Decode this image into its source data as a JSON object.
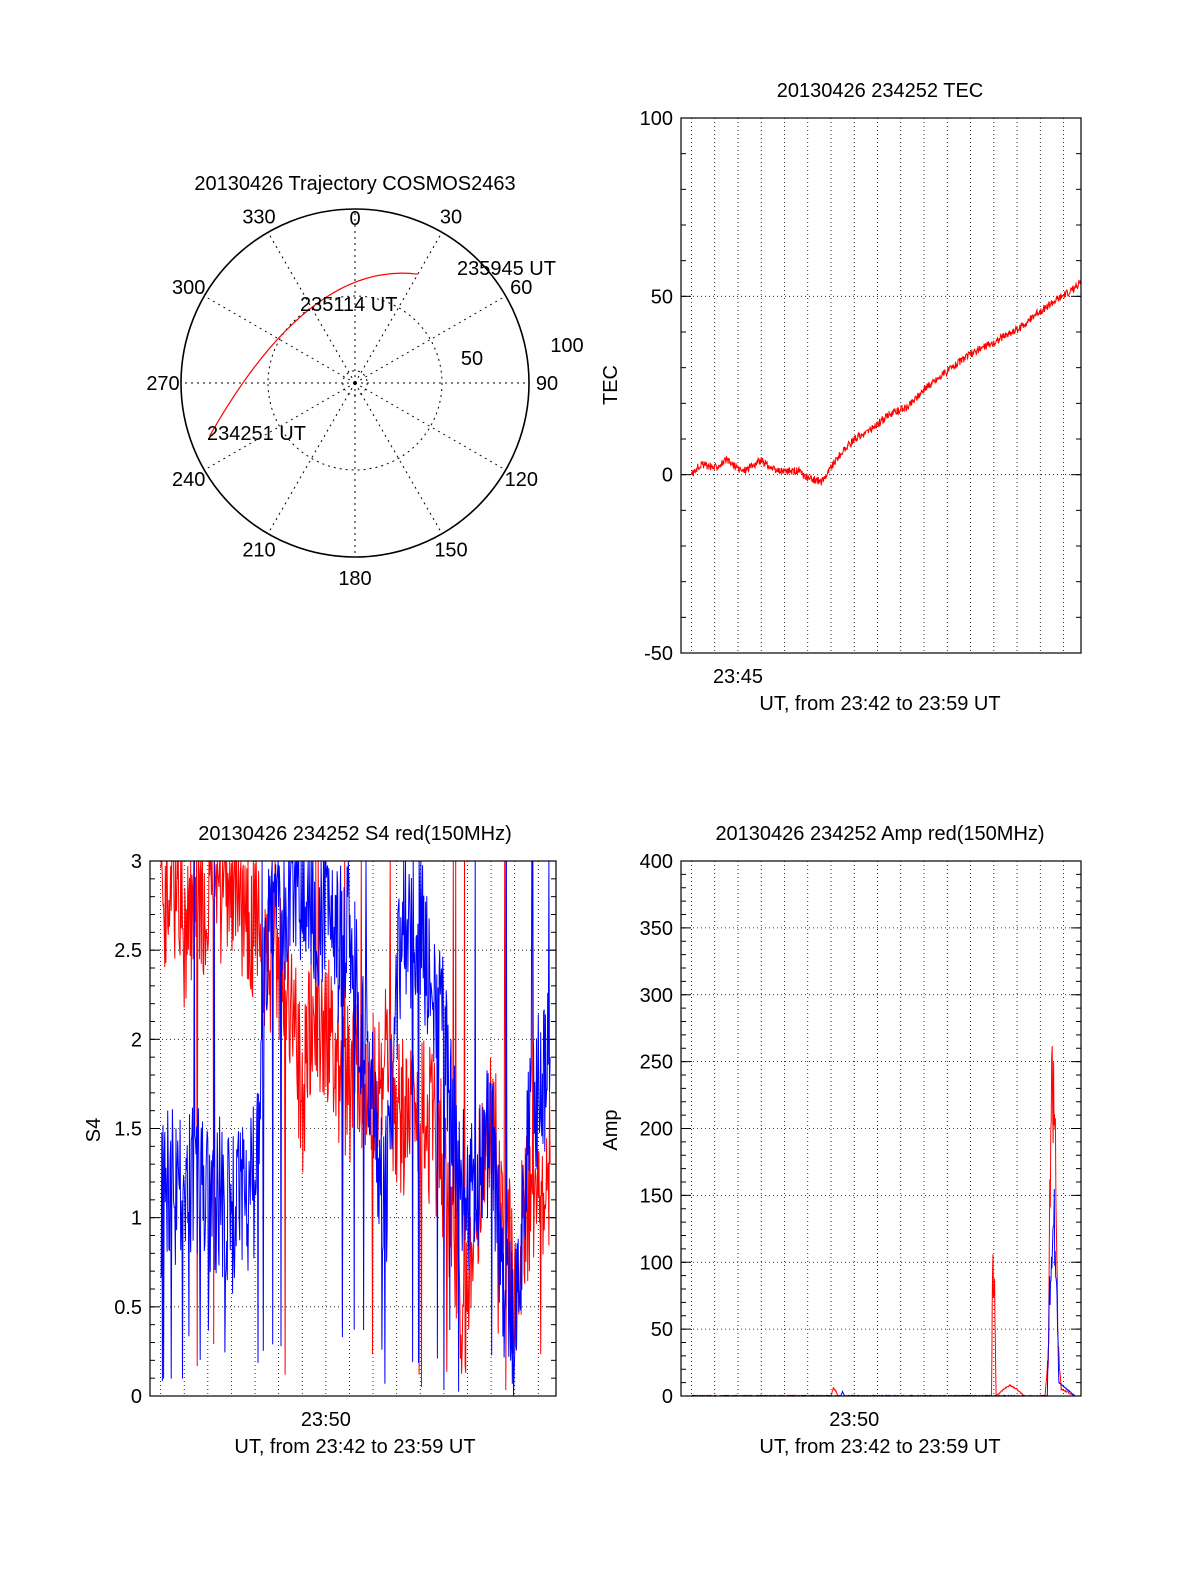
{
  "colors": {
    "red": "#ff0000",
    "blue": "#0000ff",
    "axis": "#000000",
    "grid": "#000000"
  },
  "chart_data": [
    {
      "type": "polar",
      "title": "20130426 Trajectory COSMOS2463",
      "azimuth_labels": [
        "0",
        "30",
        "60",
        "90",
        "120",
        "150",
        "180",
        "210",
        "240",
        "270",
        "300",
        "330"
      ],
      "radial_labels": [
        "50",
        "100"
      ],
      "points": [
        {
          "label": "234251 UT",
          "azimuth": 250,
          "elevation": 10
        },
        {
          "label": "235114 UT",
          "azimuth": 330,
          "elevation": 45
        },
        {
          "label": "235945 UT",
          "azimuth": 30,
          "elevation": 25
        }
      ],
      "series_color": "red"
    },
    {
      "type": "line",
      "title": "20130426 234252 TEC",
      "ylabel": "TEC",
      "xlabel": "UT, from 23:42 to 23:59 UT",
      "xtick_labels": [
        {
          "t": 45,
          "label": "23:45"
        }
      ],
      "ylim": [
        -50,
        100
      ],
      "yticks": [
        -50,
        0,
        50,
        100
      ],
      "xlim": [
        42.55,
        59.75
      ],
      "grid": true,
      "series": [
        {
          "color": "red",
          "x": [
            43.0,
            43.4,
            44.0,
            44.5,
            45.2,
            46.0,
            46.6,
            47.2,
            47.6,
            48.0,
            48.6,
            49.3,
            50.0,
            50.8,
            51.5,
            52.3,
            53.0,
            53.8,
            54.6,
            55.3,
            56.0,
            56.5,
            57.1,
            57.8,
            58.5,
            59.2,
            59.75
          ],
          "y": [
            0,
            3,
            2,
            4,
            1,
            4,
            1,
            1,
            1,
            -1,
            -2,
            5,
            10,
            13,
            17,
            19,
            24,
            28,
            32,
            35,
            37,
            39,
            41,
            45,
            48,
            51,
            54
          ]
        }
      ]
    },
    {
      "type": "line",
      "title": "20130426 234252 S4 red(150MHz)",
      "ylabel": "S4",
      "xlabel": "UT, from 23:42 to 23:59 UT",
      "xtick_labels": [
        {
          "t": 50,
          "label": "23:50"
        }
      ],
      "ylim": [
        0,
        3
      ],
      "yticks": [
        0,
        0.5,
        1,
        1.5,
        2,
        2.5,
        3
      ],
      "ytick_labels": [
        "0",
        "0.5",
        "1",
        "1.5",
        "2",
        "2.5",
        "3"
      ],
      "xlim": [
        42.55,
        59.75
      ],
      "grid": true,
      "series": [
        {
          "color": "red",
          "x": [
            43.0,
            43.5,
            44.0,
            44.5,
            45.0,
            45.5,
            46.0,
            46.5,
            47.0,
            47.5,
            48.0,
            48.5,
            49.0,
            49.5,
            50.0,
            50.5,
            51.0,
            51.5,
            52.0,
            52.5,
            53.0,
            53.5,
            54.0,
            54.5,
            55.0,
            55.5,
            56.0,
            56.5,
            57.0,
            57.5,
            58.0,
            58.5,
            59.0,
            59.5
          ],
          "y": [
            2.7,
            2.95,
            2.6,
            2.9,
            2.7,
            2.85,
            2.8,
            2.75,
            2.6,
            2.5,
            2.45,
            2.3,
            1.6,
            2.2,
            2.1,
            1.85,
            1.75,
            1.8,
            1.7,
            1.9,
            1.6,
            1.55,
            1.6,
            1.5,
            1.3,
            0.7,
            0.5,
            1.2,
            1.6,
            1.0,
            0.6,
            1.1,
            1.0,
            1.3
          ]
        },
        {
          "color": "blue",
          "x": [
            43.0,
            43.5,
            44.0,
            44.5,
            45.0,
            45.5,
            46.0,
            46.5,
            47.0,
            47.5,
            48.0,
            48.5,
            49.0,
            49.5,
            50.0,
            50.5,
            51.0,
            51.5,
            52.0,
            52.5,
            53.0,
            53.5,
            54.0,
            54.5,
            55.0,
            55.5,
            56.0,
            56.5,
            57.0,
            57.5,
            58.0,
            58.5,
            59.0,
            59.5
          ],
          "y": [
            1.1,
            1.2,
            1.05,
            1.25,
            1.1,
            1.15,
            1.0,
            1.1,
            1.2,
            2.6,
            2.7,
            2.8,
            2.9,
            2.7,
            2.75,
            2.5,
            2.6,
            2.1,
            1.7,
            1.0,
            2.3,
            2.5,
            2.7,
            2.2,
            2.0,
            1.4,
            1.1,
            1.3,
            1.5,
            0.6,
            0.3,
            1.4,
            1.7,
            1.9
          ]
        }
      ]
    },
    {
      "type": "line",
      "title": "20130426 234252 Amp red(150MHz)",
      "ylabel": "Amp",
      "xlabel": "UT, from 23:42 to 23:59 UT",
      "xtick_labels": [
        {
          "t": 50,
          "label": "23:50"
        }
      ],
      "ylim": [
        0,
        400
      ],
      "yticks": [
        0,
        50,
        100,
        150,
        200,
        250,
        300,
        350,
        400
      ],
      "xlim": [
        42.55,
        59.75
      ],
      "grid": true,
      "series": [
        {
          "color": "red",
          "x": [
            43.0,
            49.0,
            49.1,
            49.2,
            49.3,
            55.9,
            55.95,
            56.0,
            56.05,
            56.1,
            56.5,
            56.7,
            57.0,
            57.3,
            58.2,
            58.35,
            58.45,
            58.55,
            58.65,
            58.75,
            58.9,
            59.5
          ],
          "y": [
            0,
            0,
            6,
            4,
            0,
            0,
            95,
            90,
            70,
            0,
            6,
            8,
            5,
            0,
            0,
            30,
            210,
            230,
            200,
            40,
            5,
            0
          ]
        },
        {
          "color": "blue",
          "x": [
            43.0,
            49.4,
            49.5,
            49.6,
            58.3,
            58.4,
            58.5,
            58.6,
            58.7,
            58.8,
            59.5
          ],
          "y": [
            0,
            0,
            3,
            0,
            0,
            80,
            120,
            125,
            100,
            10,
            0
          ]
        }
      ]
    }
  ]
}
